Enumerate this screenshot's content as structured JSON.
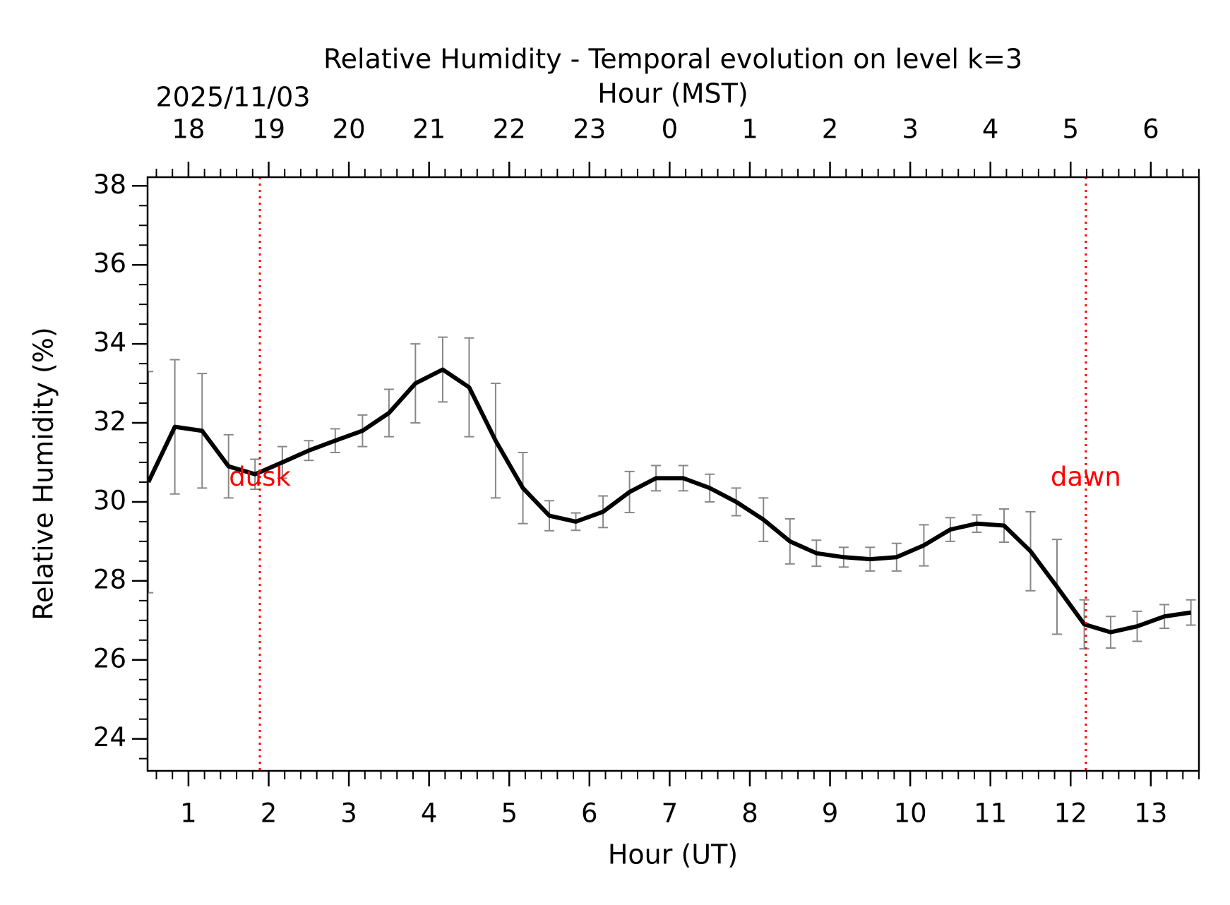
{
  "chart_data": {
    "type": "line",
    "title": "Relative Humidity - Temporal evolution on level k=3",
    "xlabel": "Hour (UT)",
    "ylabel": "Relative Humidity (%)",
    "x2label": "Hour (MST)",
    "date_label": "2025/11/03",
    "x": [
      0.5,
      0.83,
      1.17,
      1.5,
      1.83,
      2.17,
      2.5,
      2.83,
      3.17,
      3.5,
      3.83,
      4.17,
      4.5,
      4.83,
      5.17,
      5.5,
      5.83,
      6.17,
      6.5,
      6.83,
      7.17,
      7.5,
      7.83,
      8.17,
      8.5,
      8.83,
      9.17,
      9.5,
      9.83,
      10.17,
      10.5,
      10.83,
      11.17,
      11.5,
      11.83,
      12.17,
      12.5,
      12.83,
      13.17,
      13.5
    ],
    "series": [
      {
        "name": "Relative Humidity",
        "color": "#000000",
        "error_color": "#888888",
        "values": [
          30.5,
          31.9,
          31.8,
          30.9,
          30.7,
          31.0,
          31.3,
          31.55,
          31.8,
          32.25,
          33.0,
          33.35,
          32.9,
          31.55,
          30.35,
          29.65,
          29.5,
          29.75,
          30.25,
          30.6,
          30.6,
          30.35,
          30.0,
          29.55,
          29.0,
          28.7,
          28.6,
          28.55,
          28.6,
          28.9,
          29.3,
          29.45,
          29.4,
          28.75,
          27.85,
          26.9,
          26.7,
          26.85,
          27.1,
          27.2
        ],
        "errors": [
          2.8,
          1.7,
          1.45,
          0.8,
          0.38,
          0.4,
          0.25,
          0.3,
          0.4,
          0.6,
          1.0,
          0.82,
          1.25,
          1.45,
          0.9,
          0.38,
          0.22,
          0.4,
          0.52,
          0.32,
          0.32,
          0.35,
          0.35,
          0.55,
          0.57,
          0.33,
          0.25,
          0.3,
          0.35,
          0.52,
          0.3,
          0.22,
          0.42,
          1.0,
          1.2,
          0.62,
          0.4,
          0.38,
          0.3,
          0.32
        ]
      }
    ],
    "xlim": [
      0.49,
      13.6
    ],
    "ylim": [
      23.19,
      38.22
    ],
    "xticks": [
      1,
      2,
      3,
      4,
      5,
      6,
      7,
      8,
      9,
      10,
      11,
      12,
      13
    ],
    "yticks": [
      24,
      26,
      28,
      30,
      32,
      34,
      36,
      38
    ],
    "x2ticks": [
      {
        "value": 1,
        "label": "18"
      },
      {
        "value": 2,
        "label": "19"
      },
      {
        "value": 3,
        "label": "20"
      },
      {
        "value": 4,
        "label": "21"
      },
      {
        "value": 5,
        "label": "22"
      },
      {
        "value": 6,
        "label": "23"
      },
      {
        "value": 7,
        "label": "0"
      },
      {
        "value": 8,
        "label": "1"
      },
      {
        "value": 9,
        "label": "2"
      },
      {
        "value": 10,
        "label": "3"
      },
      {
        "value": 11,
        "label": "4"
      },
      {
        "value": 12,
        "label": "5"
      },
      {
        "value": 13,
        "label": "6"
      }
    ],
    "xminor": 0.2,
    "yminor": 0.5,
    "vlines": [
      {
        "x": 1.89,
        "label": "dusk",
        "label_y": 30.6,
        "color": "#ff0000"
      },
      {
        "x": 12.19,
        "label": "dawn",
        "label_y": 30.6,
        "color": "#ff0000"
      }
    ]
  }
}
